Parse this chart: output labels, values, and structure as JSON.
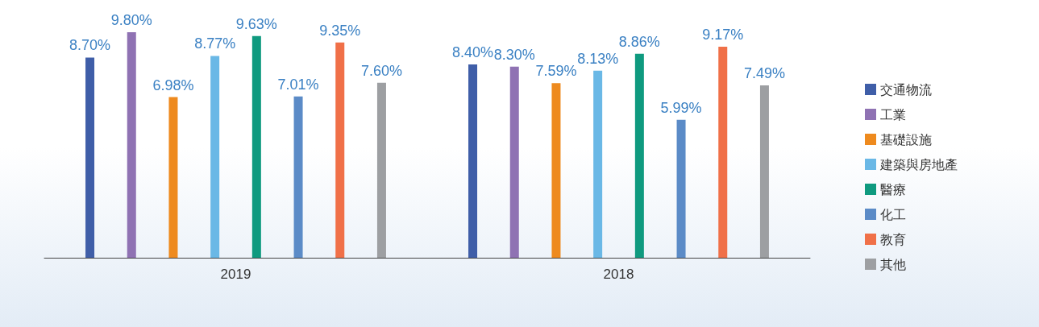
{
  "chart_data": {
    "type": "bar",
    "categories": [
      "2019",
      "2018"
    ],
    "legend": "right",
    "grid": false,
    "series": [
      {
        "name": "交通物流",
        "color": "#3f5ea8",
        "values": [
          8.7,
          8.4
        ],
        "value_labels": [
          "8.70%",
          "8.40%"
        ]
      },
      {
        "name": "工業",
        "color": "#8f72b3",
        "values": [
          9.8,
          8.3
        ],
        "value_labels": [
          "9.80%",
          "8.30%"
        ]
      },
      {
        "name": "基礎設施",
        "color": "#ee8a1e",
        "values": [
          6.98,
          7.59
        ],
        "value_labels": [
          "6.98%",
          "7.59%"
        ]
      },
      {
        "name": "建築與房地產",
        "color": "#6ab8e6",
        "values": [
          8.77,
          8.13
        ],
        "value_labels": [
          "8.77%",
          "8.13%"
        ]
      },
      {
        "name": "醫療",
        "color": "#0f9a7f",
        "values": [
          9.63,
          8.86
        ],
        "value_labels": [
          "9.63%",
          "8.86%"
        ]
      },
      {
        "name": "化工",
        "color": "#5b8bc7",
        "values": [
          7.01,
          5.99
        ],
        "value_labels": [
          "7.01%",
          "5.99%"
        ]
      },
      {
        "name": "教育",
        "color": "#f07048",
        "values": [
          9.35,
          9.17
        ],
        "value_labels": [
          "9.35%",
          "9.17%"
        ]
      },
      {
        "name": "其他",
        "color": "#9d9fa2",
        "values": [
          7.6,
          7.49
        ],
        "value_labels": [
          "7.60%",
          "7.49%"
        ]
      }
    ]
  }
}
